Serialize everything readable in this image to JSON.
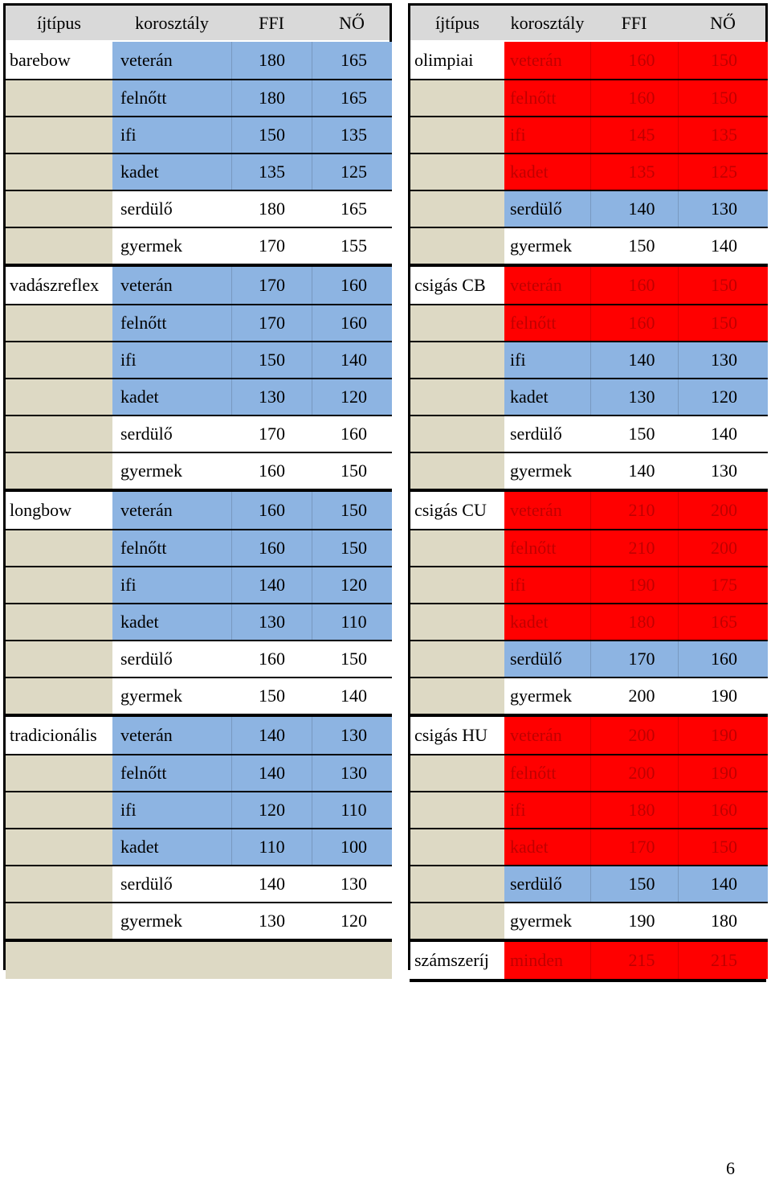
{
  "left_table": {
    "headers": [
      "íjtípus",
      "korosztály",
      "FFI",
      "NŐ"
    ],
    "groups": [
      {
        "type": "barebow",
        "rows": [
          {
            "age": "veterán",
            "ffi": "180",
            "no": "165"
          },
          {
            "age": "felnőtt",
            "ffi": "180",
            "no": "165"
          },
          {
            "age": "ifi",
            "ffi": "150",
            "no": "135"
          },
          {
            "age": "kadet",
            "ffi": "135",
            "no": "125"
          },
          {
            "age": "serdülő",
            "ffi": "180",
            "no": "165"
          },
          {
            "age": "gyermek",
            "ffi": "170",
            "no": "155"
          }
        ]
      },
      {
        "type": "vadászreflex",
        "rows": [
          {
            "age": "veterán",
            "ffi": "170",
            "no": "160"
          },
          {
            "age": "felnőtt",
            "ffi": "170",
            "no": "160"
          },
          {
            "age": "ifi",
            "ffi": "150",
            "no": "140"
          },
          {
            "age": "kadet",
            "ffi": "130",
            "no": "120"
          },
          {
            "age": "serdülő",
            "ffi": "170",
            "no": "160"
          },
          {
            "age": "gyermek",
            "ffi": "160",
            "no": "150"
          }
        ]
      },
      {
        "type": "longbow",
        "rows": [
          {
            "age": "veterán",
            "ffi": "160",
            "no": "150"
          },
          {
            "age": "felnőtt",
            "ffi": "160",
            "no": "150"
          },
          {
            "age": "ifi",
            "ffi": "140",
            "no": "120"
          },
          {
            "age": "kadet",
            "ffi": "130",
            "no": "110"
          },
          {
            "age": "serdülő",
            "ffi": "160",
            "no": "150"
          },
          {
            "age": "gyermek",
            "ffi": "150",
            "no": "140"
          }
        ]
      },
      {
        "type": "tradicionális",
        "rows": [
          {
            "age": "veterán",
            "ffi": "140",
            "no": "130"
          },
          {
            "age": "felnőtt",
            "ffi": "140",
            "no": "130"
          },
          {
            "age": "ifi",
            "ffi": "120",
            "no": "110"
          },
          {
            "age": "kadet",
            "ffi": "110",
            "no": "100"
          },
          {
            "age": "serdülő",
            "ffi": "140",
            "no": "130"
          },
          {
            "age": "gyermek",
            "ffi": "130",
            "no": "120"
          }
        ]
      }
    ]
  },
  "right_table": {
    "headers": [
      "íjtípus",
      "korosztály",
      "FFI",
      "NŐ"
    ],
    "groups": [
      {
        "type": "olimpiai",
        "rows": [
          {
            "age": "veterán",
            "ffi": "160",
            "no": "150"
          },
          {
            "age": "felnőtt",
            "ffi": "160",
            "no": "150"
          },
          {
            "age": "ifi",
            "ffi": "145",
            "no": "135"
          },
          {
            "age": "kadet",
            "ffi": "135",
            "no": "125"
          },
          {
            "age": "serdülő",
            "ffi": "140",
            "no": "130"
          },
          {
            "age": "gyermek",
            "ffi": "150",
            "no": "140"
          }
        ]
      },
      {
        "type": "csigás CB",
        "rows": [
          {
            "age": "veterán",
            "ffi": "160",
            "no": "150"
          },
          {
            "age": "felnőtt",
            "ffi": "160",
            "no": "150"
          },
          {
            "age": "ifi",
            "ffi": "140",
            "no": "130"
          },
          {
            "age": "kadet",
            "ffi": "130",
            "no": "120"
          },
          {
            "age": "serdülő",
            "ffi": "150",
            "no": "140"
          },
          {
            "age": "gyermek",
            "ffi": "140",
            "no": "130"
          }
        ]
      },
      {
        "type": "csigás CU",
        "rows": [
          {
            "age": "veterán",
            "ffi": "210",
            "no": "200"
          },
          {
            "age": "felnőtt",
            "ffi": "210",
            "no": "200"
          },
          {
            "age": "ifi",
            "ffi": "190",
            "no": "175"
          },
          {
            "age": "kadet",
            "ffi": "180",
            "no": "165"
          },
          {
            "age": "serdülő",
            "ffi": "170",
            "no": "160"
          },
          {
            "age": "gyermek",
            "ffi": "200",
            "no": "190"
          }
        ]
      },
      {
        "type": "csigás HU",
        "rows": [
          {
            "age": "veterán",
            "ffi": "200",
            "no": "190"
          },
          {
            "age": "felnőtt",
            "ffi": "200",
            "no": "190"
          },
          {
            "age": "ifi",
            "ffi": "180",
            "no": "160"
          },
          {
            "age": "kadet",
            "ffi": "170",
            "no": "150"
          },
          {
            "age": "serdülő",
            "ffi": "150",
            "no": "140"
          },
          {
            "age": "gyermek",
            "ffi": "190",
            "no": "180"
          }
        ]
      },
      {
        "type": "számszeríj",
        "rows": [
          {
            "age": "minden",
            "ffi": "215",
            "no": "215"
          }
        ]
      }
    ]
  },
  "colors": {
    "blue_fill": "#8db4e2",
    "red_fill": "#ff0000",
    "red_text": "#c00000",
    "beige_fill": "#ddd9c4",
    "grey_fill": "#d9d9d9"
  },
  "page_number": "6"
}
